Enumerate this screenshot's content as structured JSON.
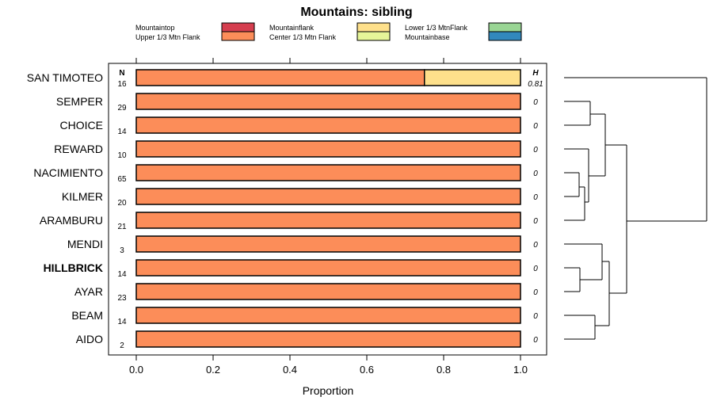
{
  "chart_data": {
    "type": "bar",
    "orientation": "horizontal",
    "stacked": true,
    "title": "Mountains: sibling",
    "xlabel": "Proportion",
    "xlim": [
      0,
      1
    ],
    "x_ticks": [
      "0.0",
      "0.2",
      "0.4",
      "0.6",
      "0.8",
      "1.0"
    ],
    "n_header": "N",
    "h_header": "H",
    "legend": [
      {
        "name": "Mountaintop",
        "color": "#d53e4f"
      },
      {
        "name": "Upper 1/3 Mtn Flank",
        "color": "#fc8d59"
      },
      {
        "name": "Mountainflank",
        "color": "#fee08b"
      },
      {
        "name": "Center 1/3 Mtn Flank",
        "color": "#e6f598"
      },
      {
        "name": "Lower 1/3 MtnFlank",
        "color": "#99d594"
      },
      {
        "name": "Mountainbase",
        "color": "#3288bd"
      }
    ],
    "categories": [
      "SAN TIMOTEO",
      "SEMPER",
      "CHOICE",
      "REWARD",
      "NACIMIENTO",
      "KILMER",
      "ARAMBURU",
      "MENDI",
      "HILLBRICK",
      "AYAR",
      "BEAM",
      "AIDO"
    ],
    "highlight": "HILLBRICK",
    "n_values": [
      "16",
      "29",
      "14",
      "10",
      "65",
      "20",
      "21",
      "3",
      "14",
      "23",
      "14",
      "2"
    ],
    "h_values": [
      "0.81",
      "0",
      "0",
      "0",
      "0",
      "0",
      "0",
      "0",
      "0",
      "0",
      "0",
      "0"
    ],
    "series": [
      {
        "name": "Upper 1/3 Mtn Flank",
        "values": [
          0.75,
          1,
          1,
          1,
          1,
          1,
          1,
          1,
          1,
          1,
          1,
          1
        ]
      },
      {
        "name": "Mountainflank",
        "values": [
          0.25,
          0,
          0,
          0,
          0,
          0,
          0,
          0,
          0,
          0,
          0,
          0
        ]
      }
    ]
  }
}
